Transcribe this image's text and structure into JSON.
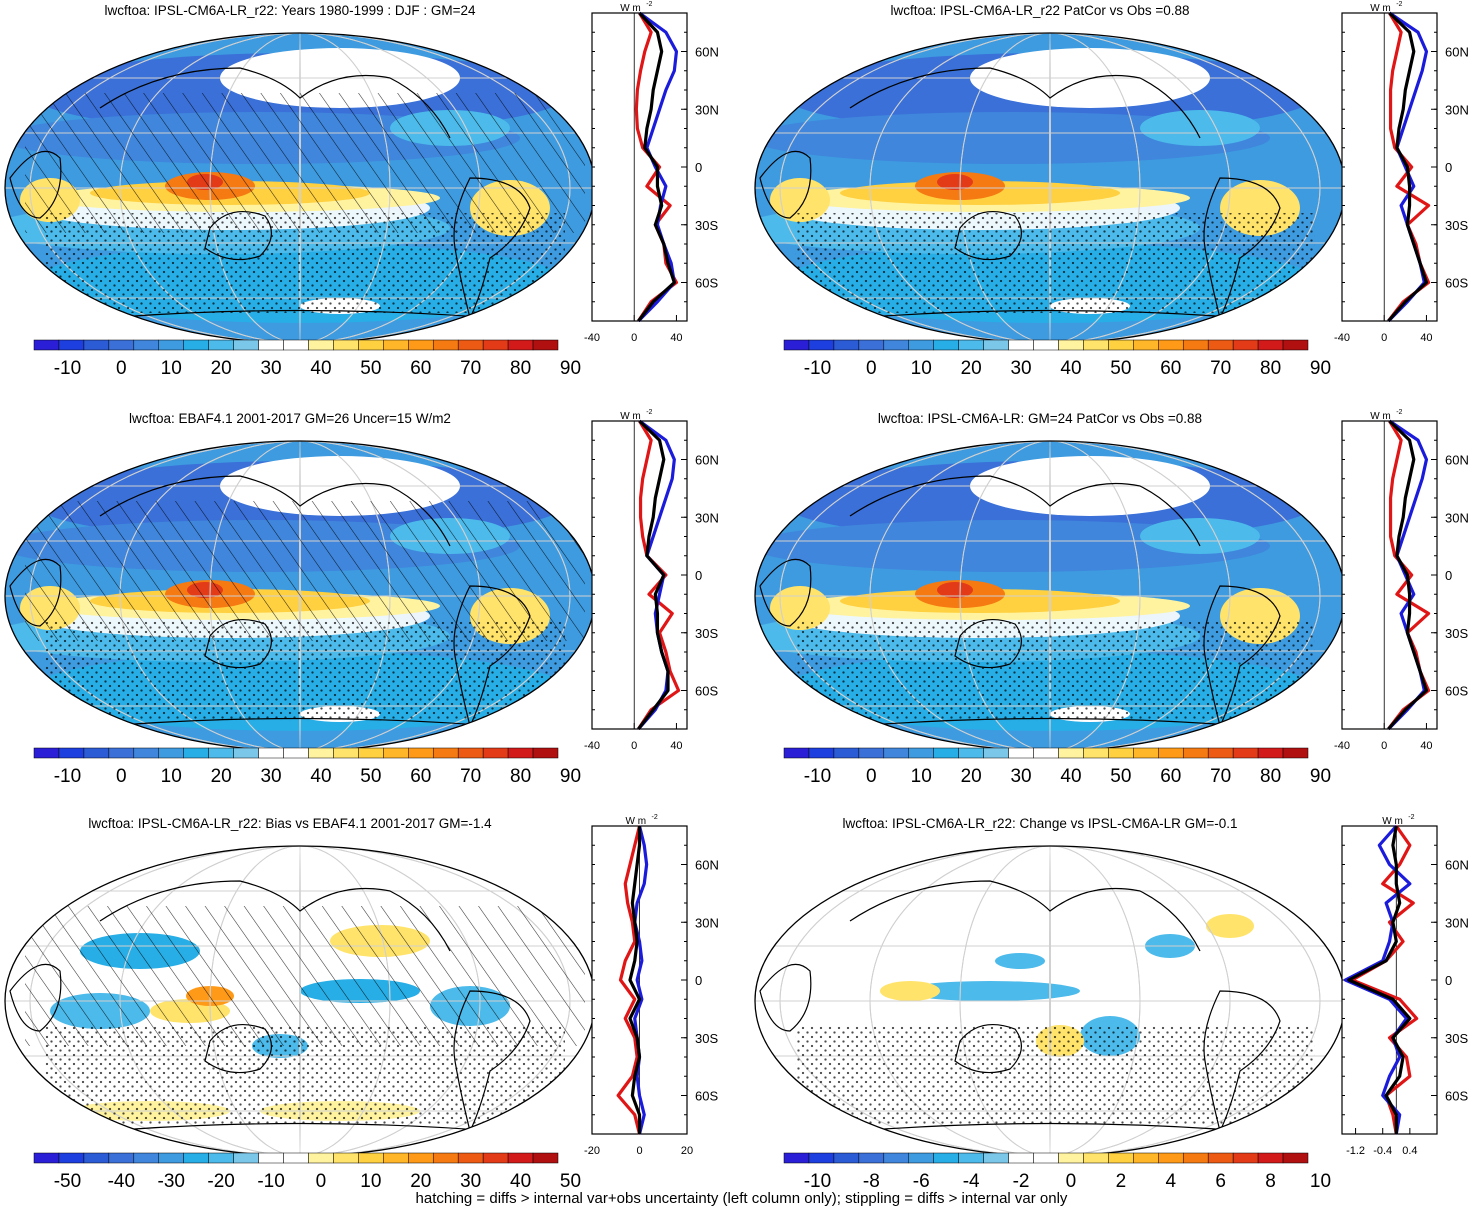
{
  "footer": "hatching = diffs > internal var+obs uncertainty (left column only); stippling = diffs > internal var only",
  "profile_unit": "W m",
  "profile_unit_sup": "-2",
  "lat_labels": [
    "60N",
    "30N",
    "0",
    "30S",
    "60S"
  ],
  "colors": {
    "full": [
      "#2a1fd6",
      "#1e3fe0",
      "#2c5bd6",
      "#3a70d8",
      "#3f86dc",
      "#3e9be0",
      "#28aee6",
      "#4cbaea",
      "#7ac7ea",
      "#ffffff",
      "#ffffff",
      "#fff3a0",
      "#ffe36a",
      "#ffd040",
      "#ffb628",
      "#ff9a18",
      "#f57a12",
      "#ec5a14",
      "#e33a18",
      "#d21a1a",
      "#b01010"
    ],
    "bias": [
      "#2a1fd6",
      "#1e3fe0",
      "#2c5bd6",
      "#3a70d8",
      "#3f86dc",
      "#3e9be0",
      "#28aee6",
      "#4cbaea",
      "#7ac7ea",
      "#ffffff",
      "#ffffff",
      "#fff3a0",
      "#ffe36a",
      "#ffd040",
      "#ffb628",
      "#ff9a18",
      "#f57a12",
      "#ec5a14",
      "#e33a18",
      "#d21a1a",
      "#b01010"
    ],
    "lines": {
      "model": "#1b1bdc",
      "obs": "#e01515",
      "mean": "#000000"
    }
  },
  "chart_data": [
    {
      "type": "heatmap",
      "title": "lwcftoa: IPSL-CM6A-LR_r22: Years 1980-1999 : DJF : GM=24",
      "colorbar_labels": [
        "-10",
        "0",
        "10",
        "20",
        "30",
        "40",
        "50",
        "60",
        "70",
        "80",
        "90"
      ],
      "colorbar_kind": "full",
      "field": "model",
      "hatch": true,
      "stipple": true,
      "profile": {
        "xlim": [
          -40,
          50
        ],
        "ticks": [
          "-40",
          "0",
          "40"
        ],
        "tick_values": [
          -40,
          0,
          40
        ],
        "lat": [
          80,
          70,
          60,
          50,
          40,
          30,
          20,
          10,
          0,
          -10,
          -20,
          -30,
          -40,
          -50,
          -60,
          -70,
          -80
        ],
        "blue": [
          5,
          30,
          40,
          38,
          30,
          24,
          18,
          12,
          20,
          30,
          25,
          22,
          28,
          35,
          38,
          22,
          4
        ],
        "red": [
          5,
          16,
          10,
          6,
          3,
          2,
          3,
          8,
          24,
          12,
          34,
          20,
          28,
          30,
          40,
          16,
          4
        ],
        "black": [
          5,
          22,
          26,
          22,
          18,
          16,
          12,
          10,
          22,
          22,
          26,
          20,
          28,
          32,
          38,
          18,
          4
        ]
      }
    },
    {
      "type": "heatmap",
      "title": "lwcftoa: IPSL-CM6A-LR_r22 PatCor vs Obs =0.88",
      "colorbar_labels": [
        "-10",
        "0",
        "10",
        "20",
        "30",
        "40",
        "50",
        "60",
        "70",
        "80",
        "90"
      ],
      "colorbar_kind": "full",
      "field": "model",
      "hatch": false,
      "stipple": true,
      "profile": {
        "xlim": [
          -40,
          50
        ],
        "ticks": [
          "-40",
          "0",
          "40"
        ],
        "tick_values": [
          -40,
          0,
          40
        ],
        "lat": [
          80,
          70,
          60,
          50,
          40,
          30,
          20,
          10,
          0,
          -10,
          -20,
          -30,
          -40,
          -50,
          -60,
          -70,
          -80
        ],
        "blue": [
          5,
          32,
          40,
          36,
          30,
          24,
          18,
          12,
          20,
          28,
          16,
          22,
          28,
          34,
          38,
          22,
          4
        ],
        "red": [
          5,
          16,
          12,
          8,
          6,
          6,
          6,
          10,
          26,
          12,
          42,
          22,
          30,
          34,
          42,
          18,
          4
        ],
        "black": [
          5,
          24,
          28,
          24,
          20,
          18,
          14,
          12,
          22,
          24,
          24,
          22,
          28,
          34,
          40,
          20,
          4
        ]
      }
    },
    {
      "type": "heatmap",
      "title": "lwcftoa: EBAF4.1 2001-2017 GM=26 Uncer=15 W/m2",
      "colorbar_labels": [
        "-10",
        "0",
        "10",
        "20",
        "30",
        "40",
        "50",
        "60",
        "70",
        "80",
        "90"
      ],
      "colorbar_kind": "full",
      "field": "obs",
      "hatch": true,
      "stipple": true,
      "profile": {
        "xlim": [
          -40,
          50
        ],
        "ticks": [
          "-40",
          "0",
          "40"
        ],
        "tick_values": [
          -40,
          0,
          40
        ],
        "lat": [
          80,
          70,
          60,
          50,
          40,
          30,
          20,
          10,
          0,
          -10,
          -20,
          -30,
          -40,
          -50,
          -60,
          -70,
          -80
        ],
        "blue": [
          5,
          30,
          38,
          36,
          30,
          24,
          18,
          12,
          28,
          24,
          20,
          22,
          26,
          32,
          30,
          20,
          4
        ],
        "red": [
          5,
          16,
          12,
          8,
          6,
          6,
          8,
          12,
          30,
          14,
          36,
          24,
          30,
          34,
          42,
          16,
          4
        ],
        "black": [
          5,
          24,
          28,
          24,
          20,
          18,
          14,
          12,
          28,
          20,
          22,
          22,
          26,
          32,
          32,
          18,
          4
        ]
      }
    },
    {
      "type": "heatmap",
      "title": "lwcftoa: IPSL-CM6A-LR: GM=24 PatCor vs Obs =0.88",
      "colorbar_labels": [
        "-10",
        "0",
        "10",
        "20",
        "30",
        "40",
        "50",
        "60",
        "70",
        "80",
        "90"
      ],
      "colorbar_kind": "full",
      "field": "model",
      "hatch": false,
      "stipple": true,
      "profile": {
        "xlim": [
          -40,
          50
        ],
        "ticks": [
          "-40",
          "0",
          "40"
        ],
        "tick_values": [
          -40,
          0,
          40
        ],
        "lat": [
          80,
          70,
          60,
          50,
          40,
          30,
          20,
          10,
          0,
          -10,
          -20,
          -30,
          -40,
          -50,
          -60,
          -70,
          -80
        ],
        "blue": [
          5,
          32,
          40,
          36,
          30,
          24,
          18,
          12,
          20,
          28,
          16,
          22,
          28,
          34,
          38,
          22,
          4
        ],
        "red": [
          5,
          16,
          12,
          8,
          6,
          6,
          6,
          10,
          26,
          12,
          42,
          22,
          30,
          34,
          42,
          18,
          4
        ],
        "black": [
          5,
          24,
          28,
          24,
          20,
          18,
          14,
          12,
          22,
          24,
          24,
          22,
          28,
          34,
          40,
          20,
          4
        ]
      }
    },
    {
      "type": "heatmap",
      "title": "lwcftoa: IPSL-CM6A-LR_r22: Bias vs EBAF4.1 2001-2017 GM=-1.4",
      "colorbar_labels": [
        "-50",
        "-40",
        "-30",
        "-20",
        "-10",
        "0",
        "10",
        "20",
        "30",
        "40",
        "50"
      ],
      "colorbar_kind": "bias",
      "field": "bias",
      "hatch": true,
      "stipple": true,
      "profile": {
        "xlim": [
          -20,
          20
        ],
        "ticks": [
          "-20",
          "0",
          "20"
        ],
        "tick_values": [
          -20,
          0,
          20
        ],
        "lat": [
          80,
          70,
          60,
          50,
          40,
          30,
          20,
          10,
          0,
          -10,
          -20,
          -30,
          -40,
          -50,
          -60,
          -70,
          -80
        ],
        "blue": [
          0,
          2,
          3,
          2,
          -1,
          -2,
          0,
          1,
          -1,
          1,
          -2,
          -1,
          0,
          -1,
          0,
          2,
          0
        ],
        "red": [
          0,
          -2,
          -4,
          -6,
          -5,
          -3,
          -2,
          -6,
          -8,
          -2,
          -6,
          -2,
          -1,
          -3,
          -9,
          -2,
          0
        ],
        "black": [
          0,
          0,
          -1,
          -2,
          -3,
          -2,
          -1,
          -2,
          -4,
          0,
          -4,
          -1,
          0,
          -2,
          -3,
          0,
          0
        ]
      }
    },
    {
      "type": "heatmap",
      "title": "lwcftoa: IPSL-CM6A-LR_r22: Change vs IPSL-CM6A-LR GM=-0.1",
      "colorbar_labels": [
        "-10",
        "-8",
        "-6",
        "-4",
        "-2",
        "0",
        "2",
        "4",
        "6",
        "8",
        "10"
      ],
      "colorbar_kind": "bias",
      "field": "change",
      "hatch": false,
      "stipple": true,
      "profile": {
        "xlim": [
          -1.6,
          1.2
        ],
        "ticks": [
          "-1.2",
          "-0.4",
          "0.4"
        ],
        "tick_values": [
          -1.2,
          -0.4,
          0.4
        ],
        "lat": [
          80,
          70,
          60,
          50,
          40,
          30,
          20,
          10,
          0,
          -10,
          -20,
          -30,
          -40,
          -50,
          -60,
          -70,
          -80
        ],
        "blue": [
          0,
          -0.5,
          -0.2,
          0.4,
          -0.3,
          -0.1,
          -0.2,
          -0.4,
          -1.5,
          -0.2,
          0.3,
          -0.1,
          0.1,
          -0.2,
          -0.4,
          0.1,
          0
        ],
        "red": [
          0,
          0.4,
          0.1,
          -0.4,
          0.5,
          -0.2,
          0.2,
          -0.3,
          -1.3,
          0.1,
          0.6,
          -0.2,
          0.3,
          0.4,
          -0.3,
          -0.1,
          0
        ],
        "black": [
          0,
          -0.1,
          0,
          0,
          0.1,
          -0.1,
          0,
          -0.3,
          -1.4,
          -0.1,
          0.4,
          -0.1,
          0.2,
          0.1,
          -0.3,
          0,
          0
        ]
      }
    }
  ]
}
